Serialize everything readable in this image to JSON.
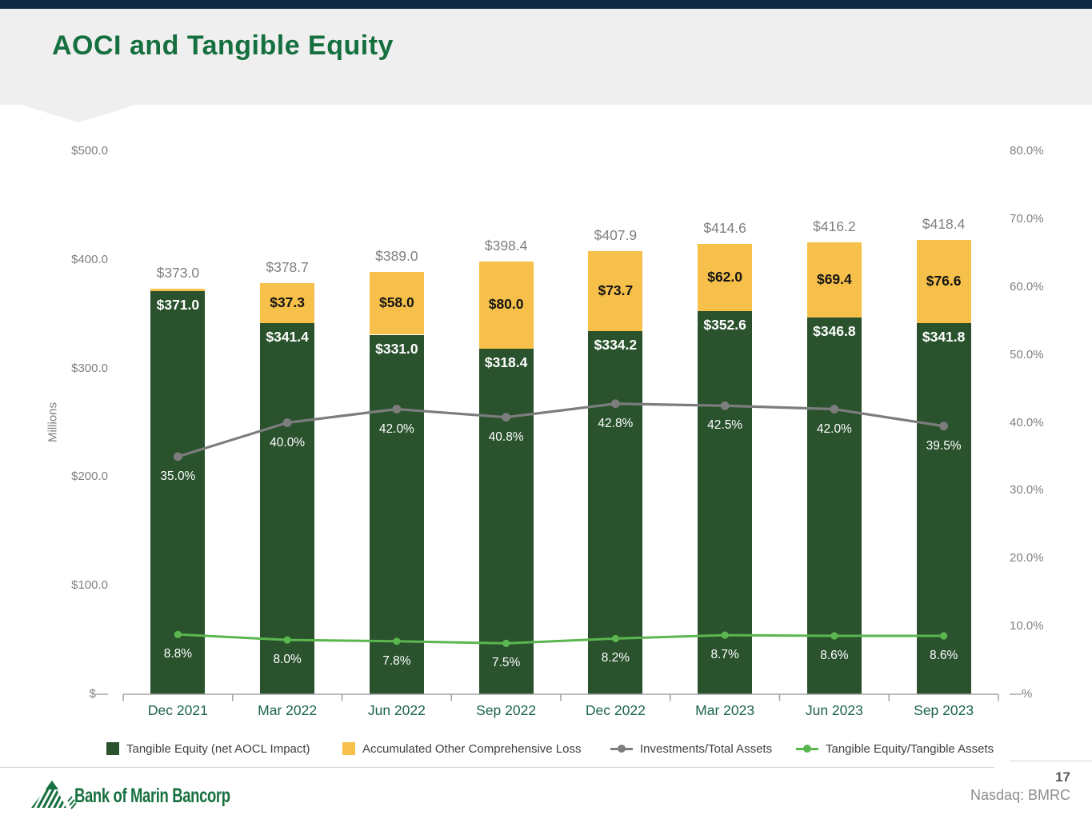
{
  "header": {
    "title": "AOCI and Tangible Equity"
  },
  "footer": {
    "page_number": "17",
    "ticker": "Nasdaq: BMRC",
    "logo_text": "Bank of Marin Bancorp"
  },
  "colors": {
    "top_bar": "#0e2a43",
    "header_band": "#efefef",
    "title_green": "#156f3e",
    "bar_green": "#29522d",
    "bar_yellow": "#f6c04a",
    "line_gray": "#7d7d7d",
    "line_green": "#5bb64f",
    "axis_text": "#7f7f7f",
    "axis_line": "#a6a6a6",
    "category_text": "#1b6350",
    "logo_green": "#17703f"
  },
  "chart_data": {
    "type": "combo: stacked bar + line",
    "title": "AOCI and Tangible Equity",
    "grid": false,
    "legend_position": "bottom",
    "categories": [
      "Dec 2021",
      "Mar 2022",
      "Jun 2022",
      "Sep 2022",
      "Dec 2022",
      "Mar 2023",
      "Jun 2023",
      "Sep 2023"
    ],
    "series": [
      {
        "name": "Tangible Equity (net AOCL Impact)",
        "type": "bar",
        "stack": true,
        "axis": "left",
        "color": "#29522d",
        "values": [
          371.0,
          341.4,
          331.0,
          318.4,
          334.2,
          352.6,
          346.8,
          341.8
        ],
        "labels": [
          "$371.0",
          "$341.4",
          "$331.0",
          "$318.4",
          "$334.2",
          "$352.6",
          "$346.8",
          "$341.8"
        ]
      },
      {
        "name": "Accumulated Other Comprehensive Loss",
        "type": "bar",
        "stack": true,
        "axis": "left",
        "color": "#f6c04a",
        "values": [
          2.0,
          37.3,
          58.0,
          80.0,
          73.7,
          62.0,
          69.4,
          76.6
        ],
        "labels": [
          "",
          "$37.3",
          "$58.0",
          "$80.0",
          "$73.7",
          "$62.0",
          "$69.4",
          "$76.6"
        ]
      },
      {
        "name": "Investments/Total Assets",
        "type": "line",
        "axis": "right",
        "color": "#7d7d7d",
        "values": [
          35.0,
          40.0,
          42.0,
          40.8,
          42.8,
          42.5,
          42.0,
          39.5
        ],
        "labels": [
          "35.0%",
          "40.0%",
          "42.0%",
          "40.8%",
          "42.8%",
          "42.5%",
          "42.0%",
          "39.5%"
        ]
      },
      {
        "name": "Tangible Equity/Tangible Assets",
        "type": "line",
        "axis": "right",
        "color": "#5bb64f",
        "values": [
          8.8,
          8.0,
          7.8,
          7.5,
          8.2,
          8.7,
          8.6,
          8.6
        ],
        "labels": [
          "8.8%",
          "8.0%",
          "7.8%",
          "7.5%",
          "8.2%",
          "8.7%",
          "8.6%",
          "8.6%"
        ]
      }
    ],
    "stack_totals": {
      "values": [
        373.0,
        378.7,
        389.0,
        398.4,
        407.9,
        414.6,
        416.2,
        418.4
      ],
      "labels": [
        "$373.0",
        "$378.7",
        "$389.0",
        "$398.4",
        "$407.9",
        "$414.6",
        "$416.2",
        "$418.4"
      ]
    },
    "left_axis": {
      "title": "Millions",
      "min": 0,
      "max": 500,
      "tick_values": [
        500,
        400,
        300,
        200,
        100,
        0
      ],
      "tick_labels": [
        "$500.0",
        "$400.0",
        "$300.0",
        "$200.0",
        "$100.0",
        "$—"
      ]
    },
    "right_axis": {
      "min": 0,
      "max": 80,
      "tick_values": [
        80,
        70,
        60,
        50,
        40,
        30,
        20,
        10,
        0
      ],
      "tick_labels": [
        "80.0%",
        "70.0%",
        "60.0%",
        "50.0%",
        "40.0%",
        "30.0%",
        "20.0%",
        "10.0%",
        "—%"
      ]
    }
  },
  "legend": [
    {
      "label": "Tangible Equity (net AOCL Impact)",
      "marker": "square",
      "color": "#29522d"
    },
    {
      "label": "Accumulated Other Comprehensive Loss",
      "marker": "square",
      "color": "#f6c04a"
    },
    {
      "label": "Investments/Total Assets",
      "marker": "line-dot",
      "color": "#7d7d7d"
    },
    {
      "label": "Tangible Equity/Tangible Assets",
      "marker": "line-dot",
      "color": "#5bb64f"
    }
  ]
}
